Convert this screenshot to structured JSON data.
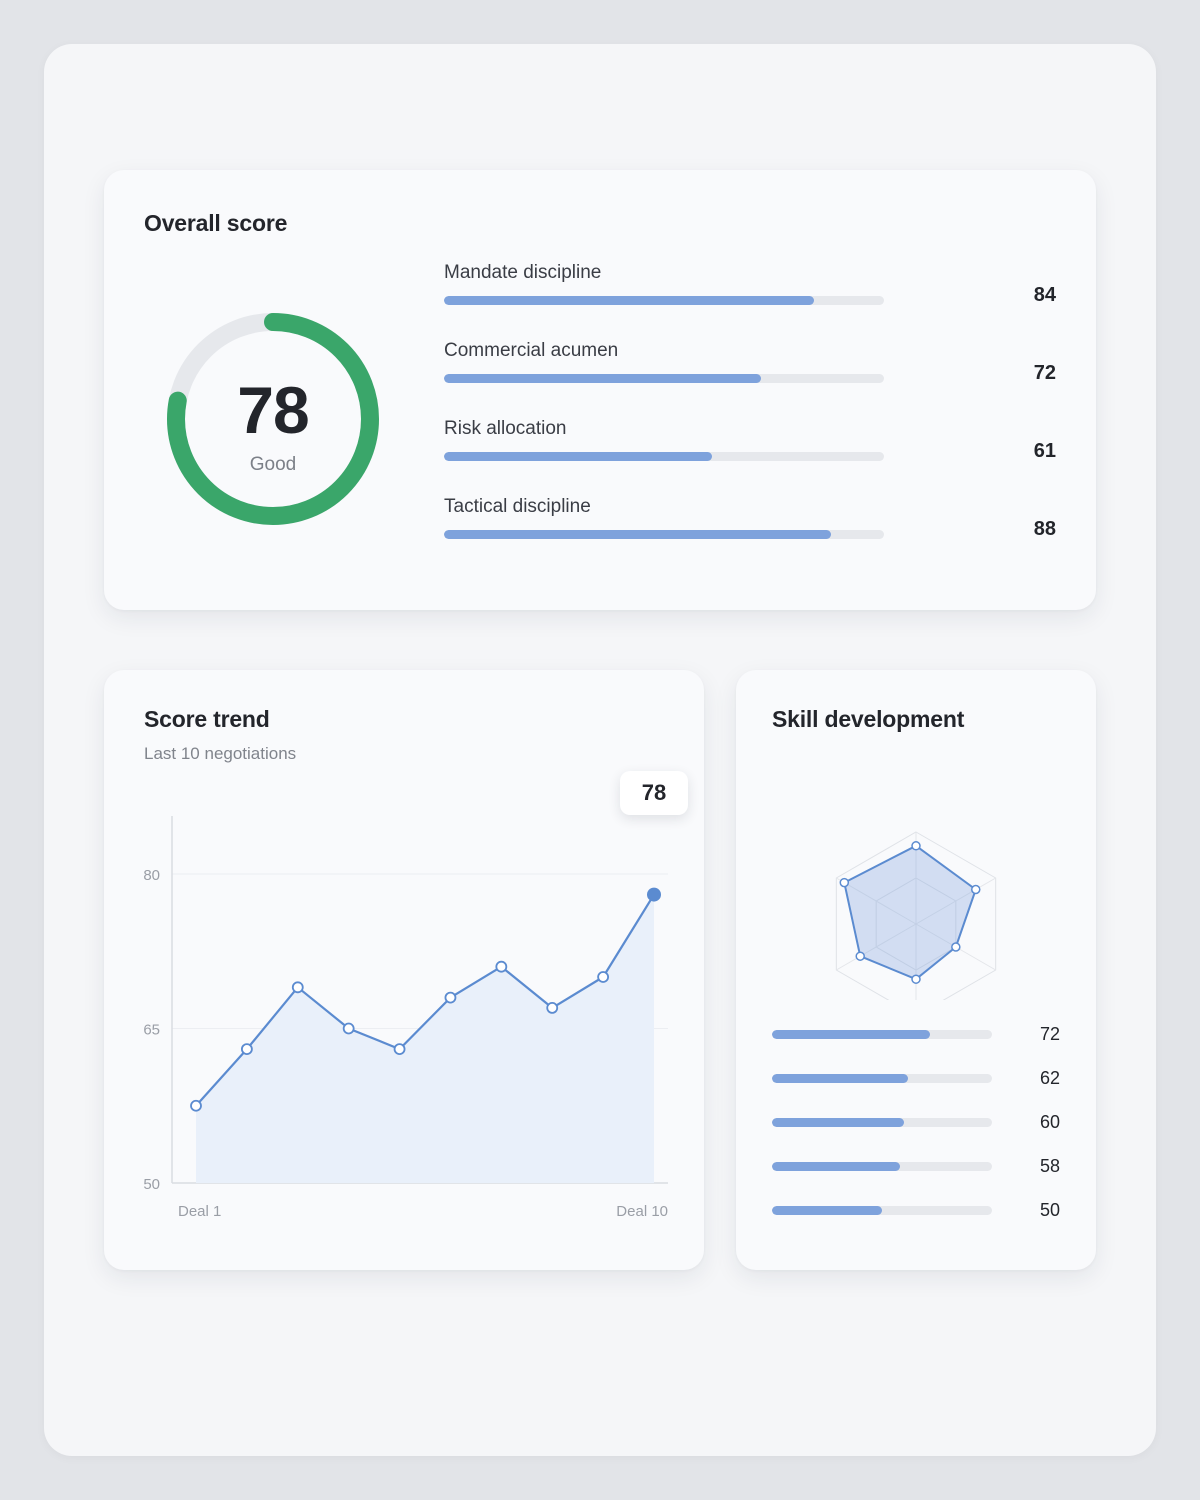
{
  "overall": {
    "title": "Overall score",
    "gauge": {
      "value": "78",
      "label": "Good",
      "fraction": 0.78,
      "color": "#3aa66a",
      "track_color": "#e6e8ec"
    },
    "metrics": [
      {
        "label": "Mandate discipline",
        "value": "84",
        "fraction": 0.84
      },
      {
        "label": "Commercial acumen",
        "value": "72",
        "fraction": 0.72
      },
      {
        "label": "Risk allocation",
        "value": "61",
        "fraction": 0.61
      },
      {
        "label": "Tactical discipline",
        "value": "88",
        "fraction": 0.88
      }
    ],
    "bar_color": "#7ea2dc"
  },
  "trend": {
    "title": "Score trend",
    "subtitle": "Last 10 negotiations",
    "tooltip": "78",
    "chart_data": {
      "type": "area",
      "x": [
        "Deal 1",
        "",
        "",
        "",
        "",
        "",
        "",
        "",
        "",
        "Deal 10"
      ],
      "values": [
        57.5,
        63,
        69,
        65,
        63,
        68,
        71,
        67,
        70,
        78
      ],
      "y_ticks": [
        "80",
        "65",
        "50"
      ],
      "ylim": [
        50,
        80
      ],
      "x_tick_labels": [
        "Deal 1",
        "Deal 10"
      ],
      "grid": true,
      "line_color": "#5b8bd0",
      "fill_color": "#e9f0fa"
    }
  },
  "skills": {
    "title": "Skill development",
    "radar": {
      "values": [
        0.85,
        0.75,
        0.5,
        0.6,
        0.7,
        0.9
      ],
      "color": "#5b8bd0"
    },
    "bars": [
      {
        "value": "72",
        "fraction": 0.72
      },
      {
        "value": "62",
        "fraction": 0.62
      },
      {
        "value": "60",
        "fraction": 0.6
      },
      {
        "value": "58",
        "fraction": 0.58
      },
      {
        "value": "50",
        "fraction": 0.5
      }
    ]
  }
}
